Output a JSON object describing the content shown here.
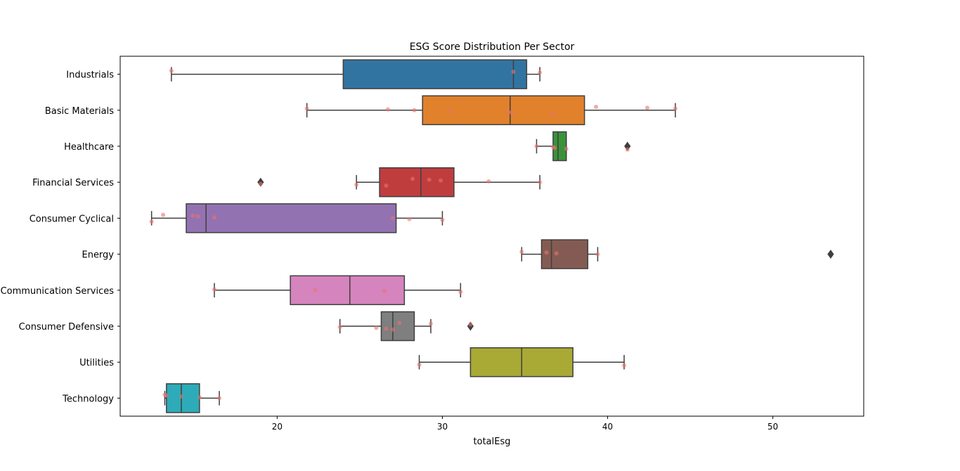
{
  "chart_data": {
    "type": "box",
    "title": "ESG Score Distribution Per Sector",
    "xlabel": "totalEsg",
    "ylabel": "",
    "xlim": [
      10.5,
      55.5
    ],
    "xticks": [
      20,
      30,
      40,
      50
    ],
    "xtick_labels": [
      "20",
      "30",
      "40",
      "50"
    ],
    "grid": false,
    "legend": "none",
    "jitter_color": "#e8736f",
    "categories": [
      {
        "name": "Industrials",
        "color": "#3274a1",
        "whisker_low": 13.6,
        "q1": 24.0,
        "median": 34.3,
        "q3": 35.1,
        "whisker_high": 35.9,
        "outliers": [],
        "points": [
          13.6,
          34.3,
          35.9
        ]
      },
      {
        "name": "Basic Materials",
        "color": "#e1812c",
        "whisker_low": 21.8,
        "q1": 28.8,
        "median": 34.1,
        "q3": 38.6,
        "whisker_high": 44.1,
        "outliers": [],
        "points": [
          21.8,
          26.7,
          28.3,
          30.4,
          34.0,
          34.2,
          36.7,
          39.3,
          42.4,
          44.1
        ]
      },
      {
        "name": "Healthcare",
        "color": "#3a923a",
        "whisker_low": 35.7,
        "q1": 36.7,
        "median": 37.0,
        "q3": 37.5,
        "whisker_high": 37.5,
        "outliers": [
          41.2
        ],
        "points": [
          35.7,
          36.7,
          36.8,
          37.5,
          41.2
        ]
      },
      {
        "name": "Financial Services",
        "color": "#c03d3e",
        "whisker_low": 24.8,
        "q1": 26.2,
        "median": 28.7,
        "q3": 30.7,
        "whisker_high": 35.9,
        "outliers": [
          19.0
        ],
        "points": [
          19.0,
          24.8,
          26.6,
          28.2,
          29.2,
          29.9,
          32.8,
          35.9
        ]
      },
      {
        "name": "Consumer Cyclical",
        "color": "#9372b2",
        "whisker_low": 12.4,
        "q1": 14.5,
        "median": 15.7,
        "q3": 27.2,
        "whisker_high": 30.0,
        "outliers": [],
        "points": [
          12.4,
          13.1,
          14.9,
          15.2,
          16.2,
          27.0,
          28.0,
          30.0
        ]
      },
      {
        "name": "Energy",
        "color": "#845b53",
        "whisker_low": 34.8,
        "q1": 36.0,
        "median": 36.6,
        "q3": 38.8,
        "whisker_high": 39.4,
        "outliers": [
          53.5
        ],
        "points": [
          34.8,
          36.3,
          36.9,
          39.4
        ]
      },
      {
        "name": "Communication Services",
        "color": "#d684bd",
        "whisker_low": 16.2,
        "q1": 20.8,
        "median": 24.4,
        "q3": 27.7,
        "whisker_high": 31.1,
        "outliers": [],
        "points": [
          16.2,
          22.3,
          26.5,
          31.1
        ]
      },
      {
        "name": "Consumer Defensive",
        "color": "#7f7f7f",
        "whisker_low": 23.8,
        "q1": 26.3,
        "median": 27.0,
        "q3": 28.3,
        "whisker_high": 29.3,
        "outliers": [
          31.7
        ],
        "points": [
          23.8,
          26.0,
          26.6,
          27.0,
          27.4,
          29.3,
          31.7
        ]
      },
      {
        "name": "Utilities",
        "color": "#a9aa35",
        "whisker_low": 28.6,
        "q1": 31.7,
        "median": 34.8,
        "q3": 37.9,
        "whisker_high": 41.0,
        "outliers": [],
        "points": [
          28.6,
          41.0
        ]
      },
      {
        "name": "Technology",
        "color": "#2eabb8",
        "whisker_low": 13.2,
        "q1": 13.3,
        "median": 14.2,
        "q3": 15.3,
        "whisker_high": 16.5,
        "outliers": [],
        "points": [
          13.2,
          13.3,
          14.2,
          15.3,
          16.5
        ]
      }
    ]
  }
}
